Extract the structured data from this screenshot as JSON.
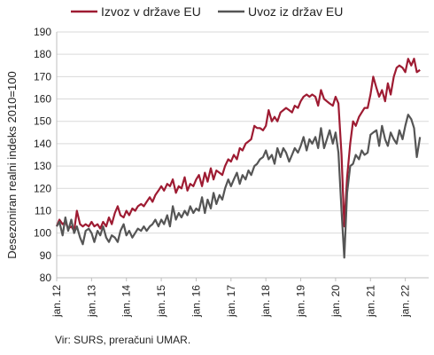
{
  "source_note": "Vir: SURS, preračuni UMAR.",
  "chart_data": {
    "type": "line",
    "ylabel": "Desezoniran realni indeks 2010=100",
    "xlabel": "",
    "ylim": [
      80,
      190
    ],
    "yticks": [
      80,
      90,
      100,
      110,
      120,
      130,
      140,
      150,
      160,
      170,
      180,
      190
    ],
    "xlim": [
      2012.0,
      2022.67
    ],
    "grid": true,
    "legend_position": "top",
    "x_ticks": [
      {
        "x": 2012,
        "label": "jan. 12"
      },
      {
        "x": 2013,
        "label": "jan. 13"
      },
      {
        "x": 2014,
        "label": "jan. 14"
      },
      {
        "x": 2015,
        "label": "jan. 15"
      },
      {
        "x": 2016,
        "label": "jan. 16"
      },
      {
        "x": 2017,
        "label": "jan. 17"
      },
      {
        "x": 2018,
        "label": "jan. 18"
      },
      {
        "x": 2019,
        "label": "jan. 19"
      },
      {
        "x": 2020,
        "label": "jan. 20"
      },
      {
        "x": 2021,
        "label": "jan. 21"
      },
      {
        "x": 2022,
        "label": "jan. 22"
      }
    ],
    "series": [
      {
        "name": "Izvoz v države EU",
        "color": "#9e1b32",
        "points": [
          [
            2012.0,
            103
          ],
          [
            2012.08,
            106
          ],
          [
            2012.17,
            104
          ],
          [
            2012.25,
            105
          ],
          [
            2012.33,
            102
          ],
          [
            2012.42,
            103
          ],
          [
            2012.5,
            101
          ],
          [
            2012.58,
            110
          ],
          [
            2012.67,
            104
          ],
          [
            2012.75,
            103
          ],
          [
            2012.83,
            104
          ],
          [
            2012.92,
            103
          ],
          [
            2013.0,
            105
          ],
          [
            2013.08,
            103
          ],
          [
            2013.17,
            104
          ],
          [
            2013.25,
            102
          ],
          [
            2013.33,
            105
          ],
          [
            2013.42,
            103
          ],
          [
            2013.5,
            107
          ],
          [
            2013.58,
            104
          ],
          [
            2013.67,
            109
          ],
          [
            2013.75,
            112
          ],
          [
            2013.83,
            108
          ],
          [
            2013.92,
            107
          ],
          [
            2014.0,
            110
          ],
          [
            2014.08,
            108
          ],
          [
            2014.17,
            111
          ],
          [
            2014.25,
            110
          ],
          [
            2014.33,
            112
          ],
          [
            2014.42,
            113
          ],
          [
            2014.5,
            112
          ],
          [
            2014.58,
            114
          ],
          [
            2014.67,
            116
          ],
          [
            2014.75,
            114
          ],
          [
            2014.83,
            117
          ],
          [
            2014.92,
            119
          ],
          [
            2015.0,
            121
          ],
          [
            2015.08,
            119
          ],
          [
            2015.17,
            122
          ],
          [
            2015.25,
            121
          ],
          [
            2015.33,
            124
          ],
          [
            2015.42,
            118
          ],
          [
            2015.5,
            121
          ],
          [
            2015.58,
            120
          ],
          [
            2015.67,
            125
          ],
          [
            2015.75,
            119
          ],
          [
            2015.83,
            122
          ],
          [
            2015.92,
            121
          ],
          [
            2016.0,
            124
          ],
          [
            2016.08,
            126
          ],
          [
            2016.17,
            121
          ],
          [
            2016.25,
            127
          ],
          [
            2016.33,
            123
          ],
          [
            2016.42,
            129
          ],
          [
            2016.5,
            124
          ],
          [
            2016.58,
            128
          ],
          [
            2016.67,
            127
          ],
          [
            2016.75,
            126
          ],
          [
            2016.83,
            130
          ],
          [
            2016.92,
            133
          ],
          [
            2017.0,
            132
          ],
          [
            2017.08,
            135
          ],
          [
            2017.17,
            133
          ],
          [
            2017.25,
            138
          ],
          [
            2017.33,
            137
          ],
          [
            2017.42,
            140
          ],
          [
            2017.5,
            141
          ],
          [
            2017.58,
            142
          ],
          [
            2017.67,
            148
          ],
          [
            2017.75,
            147
          ],
          [
            2017.83,
            147
          ],
          [
            2017.92,
            146
          ],
          [
            2018.0,
            148
          ],
          [
            2018.08,
            155
          ],
          [
            2018.17,
            150
          ],
          [
            2018.25,
            152
          ],
          [
            2018.33,
            150
          ],
          [
            2018.42,
            154
          ],
          [
            2018.5,
            155
          ],
          [
            2018.58,
            156
          ],
          [
            2018.67,
            155
          ],
          [
            2018.75,
            154
          ],
          [
            2018.83,
            157
          ],
          [
            2018.92,
            156
          ],
          [
            2019.0,
            159
          ],
          [
            2019.08,
            161
          ],
          [
            2019.17,
            162
          ],
          [
            2019.25,
            161
          ],
          [
            2019.33,
            162
          ],
          [
            2019.42,
            161
          ],
          [
            2019.5,
            157
          ],
          [
            2019.58,
            164
          ],
          [
            2019.67,
            160
          ],
          [
            2019.75,
            159
          ],
          [
            2019.83,
            158
          ],
          [
            2019.92,
            157
          ],
          [
            2020.0,
            161
          ],
          [
            2020.08,
            158
          ],
          [
            2020.17,
            135
          ],
          [
            2020.25,
            103
          ],
          [
            2020.33,
            125
          ],
          [
            2020.42,
            140
          ],
          [
            2020.5,
            150
          ],
          [
            2020.58,
            148
          ],
          [
            2020.67,
            152
          ],
          [
            2020.75,
            154
          ],
          [
            2020.83,
            156
          ],
          [
            2020.92,
            156
          ],
          [
            2021.0,
            162
          ],
          [
            2021.08,
            170
          ],
          [
            2021.17,
            165
          ],
          [
            2021.25,
            161
          ],
          [
            2021.33,
            164
          ],
          [
            2021.42,
            159
          ],
          [
            2021.5,
            167
          ],
          [
            2021.58,
            162
          ],
          [
            2021.67,
            170
          ],
          [
            2021.75,
            174
          ],
          [
            2021.83,
            175
          ],
          [
            2021.92,
            174
          ],
          [
            2022.0,
            172
          ],
          [
            2022.08,
            178
          ],
          [
            2022.17,
            175
          ],
          [
            2022.25,
            178
          ],
          [
            2022.33,
            172
          ],
          [
            2022.42,
            173
          ]
        ]
      },
      {
        "name": "Uvoz iz držav EU",
        "color": "#555555",
        "points": [
          [
            2012.0,
            103
          ],
          [
            2012.08,
            105
          ],
          [
            2012.17,
            99
          ],
          [
            2012.25,
            107
          ],
          [
            2012.33,
            101
          ],
          [
            2012.42,
            106
          ],
          [
            2012.5,
            100
          ],
          [
            2012.58,
            103
          ],
          [
            2012.67,
            98
          ],
          [
            2012.75,
            95
          ],
          [
            2012.83,
            101
          ],
          [
            2012.92,
            102
          ],
          [
            2013.0,
            100
          ],
          [
            2013.08,
            96
          ],
          [
            2013.17,
            101
          ],
          [
            2013.25,
            99
          ],
          [
            2013.33,
            103
          ],
          [
            2013.42,
            98
          ],
          [
            2013.5,
            96
          ],
          [
            2013.58,
            99
          ],
          [
            2013.67,
            98
          ],
          [
            2013.75,
            96
          ],
          [
            2013.83,
            101
          ],
          [
            2013.92,
            104
          ],
          [
            2014.0,
            99
          ],
          [
            2014.08,
            101
          ],
          [
            2014.17,
            98
          ],
          [
            2014.25,
            100
          ],
          [
            2014.33,
            102
          ],
          [
            2014.42,
            101
          ],
          [
            2014.5,
            103
          ],
          [
            2014.58,
            101
          ],
          [
            2014.67,
            103
          ],
          [
            2014.75,
            104
          ],
          [
            2014.83,
            106
          ],
          [
            2014.92,
            103
          ],
          [
            2015.0,
            106
          ],
          [
            2015.08,
            104
          ],
          [
            2015.17,
            108
          ],
          [
            2015.25,
            103
          ],
          [
            2015.33,
            112
          ],
          [
            2015.42,
            106
          ],
          [
            2015.5,
            109
          ],
          [
            2015.58,
            107
          ],
          [
            2015.67,
            110
          ],
          [
            2015.75,
            108
          ],
          [
            2015.83,
            112
          ],
          [
            2015.92,
            109
          ],
          [
            2016.0,
            111
          ],
          [
            2016.08,
            110
          ],
          [
            2016.17,
            116
          ],
          [
            2016.25,
            109
          ],
          [
            2016.33,
            115
          ],
          [
            2016.42,
            111
          ],
          [
            2016.5,
            118
          ],
          [
            2016.58,
            113
          ],
          [
            2016.67,
            117
          ],
          [
            2016.75,
            115
          ],
          [
            2016.83,
            120
          ],
          [
            2016.92,
            124
          ],
          [
            2017.0,
            121
          ],
          [
            2017.08,
            124
          ],
          [
            2017.17,
            127
          ],
          [
            2017.25,
            122
          ],
          [
            2017.33,
            126
          ],
          [
            2017.42,
            124
          ],
          [
            2017.5,
            128
          ],
          [
            2017.58,
            126
          ],
          [
            2017.67,
            130
          ],
          [
            2017.75,
            131
          ],
          [
            2017.83,
            133
          ],
          [
            2017.92,
            134
          ],
          [
            2018.0,
            137
          ],
          [
            2018.08,
            133
          ],
          [
            2018.17,
            135
          ],
          [
            2018.25,
            131
          ],
          [
            2018.33,
            138
          ],
          [
            2018.42,
            134
          ],
          [
            2018.5,
            138
          ],
          [
            2018.58,
            136
          ],
          [
            2018.67,
            132
          ],
          [
            2018.75,
            135
          ],
          [
            2018.83,
            138
          ],
          [
            2018.92,
            136
          ],
          [
            2019.0,
            139
          ],
          [
            2019.08,
            143
          ],
          [
            2019.17,
            137
          ],
          [
            2019.25,
            142
          ],
          [
            2019.33,
            140
          ],
          [
            2019.42,
            143
          ],
          [
            2019.5,
            138
          ],
          [
            2019.58,
            147
          ],
          [
            2019.67,
            138
          ],
          [
            2019.75,
            142
          ],
          [
            2019.83,
            146
          ],
          [
            2019.92,
            140
          ],
          [
            2020.0,
            145
          ],
          [
            2020.08,
            136
          ],
          [
            2020.17,
            110
          ],
          [
            2020.25,
            89
          ],
          [
            2020.33,
            118
          ],
          [
            2020.42,
            130
          ],
          [
            2020.5,
            131
          ],
          [
            2020.58,
            135
          ],
          [
            2020.67,
            133
          ],
          [
            2020.75,
            137
          ],
          [
            2020.83,
            135
          ],
          [
            2020.92,
            136
          ],
          [
            2021.0,
            144
          ],
          [
            2021.08,
            145
          ],
          [
            2021.17,
            146
          ],
          [
            2021.25,
            139
          ],
          [
            2021.33,
            148
          ],
          [
            2021.42,
            142
          ],
          [
            2021.5,
            139
          ],
          [
            2021.58,
            145
          ],
          [
            2021.67,
            142
          ],
          [
            2021.75,
            140
          ],
          [
            2021.83,
            146
          ],
          [
            2021.92,
            142
          ],
          [
            2022.0,
            148
          ],
          [
            2022.08,
            153
          ],
          [
            2022.17,
            151
          ],
          [
            2022.25,
            147
          ],
          [
            2022.33,
            134
          ],
          [
            2022.42,
            143
          ]
        ]
      }
    ]
  }
}
